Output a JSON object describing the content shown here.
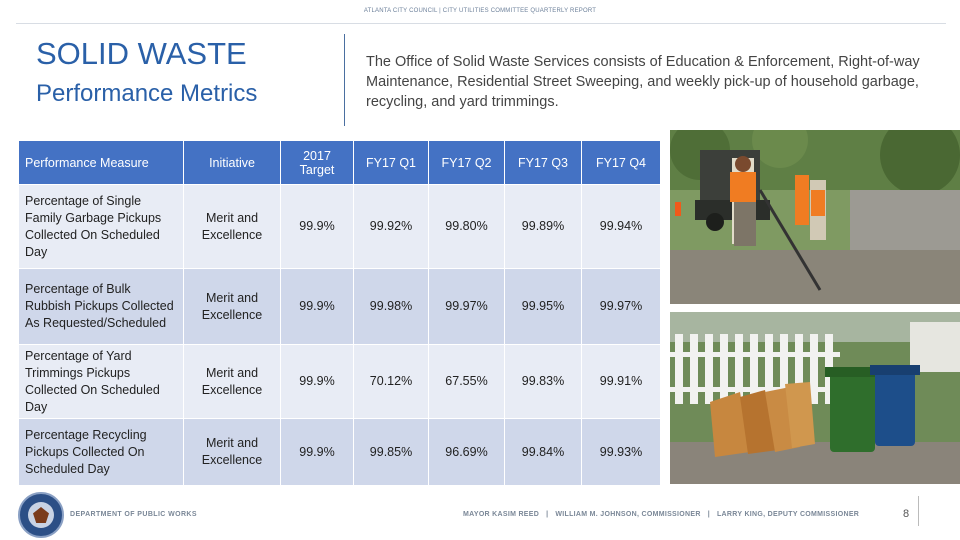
{
  "header": {
    "note": "ATLANTA CITY COUNCIL | CITY UTILITIES COMMITTEE QUARTERLY REPORT"
  },
  "title": "SOLID WASTE",
  "subtitle": "Performance Metrics",
  "intro": "The Office of Solid Waste Services consists of Education & Enforcement, Right-of-way Maintenance, Residential Street Sweeping, and weekly pick-up of household garbage, recycling, and yard trimmings.",
  "table": {
    "headers": [
      "Performance Measure",
      "Initiative",
      "2017 Target",
      "FY17 Q1",
      "FY17 Q2",
      "FY17 Q3",
      "FY17 Q4"
    ],
    "rows": [
      [
        "Percentage of Single Family Garbage Pickups Collected On Scheduled Day",
        "Merit and Excellence",
        "99.9%",
        "99.92%",
        "99.80%",
        "99.89%",
        "99.94%"
      ],
      [
        "Percentage of Bulk Rubbish Pickups Collected As Requested/Scheduled",
        "Merit and Excellence",
        "99.9%",
        "99.98%",
        "99.97%",
        "99.95%",
        "99.97%"
      ],
      [
        "Percentage of Yard Trimmings Pickups Collected On Scheduled Day",
        "Merit and Excellence",
        "99.9%",
        "70.12%",
        "67.55%",
        "99.83%",
        "99.91%"
      ],
      [
        "Percentage Recycling Pickups Collected On Scheduled Day",
        "Merit and Excellence",
        "99.9%",
        "99.85%",
        "96.69%",
        "99.84%",
        "99.93%"
      ]
    ]
  },
  "footer": {
    "department": "DEPARTMENT OF PUBLIC WORKS",
    "mayor": "MAYOR KASIM REED",
    "commissioner": "WILLIAM M. JOHNSON, COMMISSIONER",
    "deputy": "LARRY KING, DEPUTY COMMISSIONER",
    "page": "8"
  },
  "colors": {
    "accent": "#2a60a8",
    "table_header": "#4472c4",
    "row_light": "#e8ecf5",
    "row_dark": "#cfd7ea"
  },
  "images": [
    "crew-with-truck-photo",
    "yard-waste-bins-photo"
  ]
}
